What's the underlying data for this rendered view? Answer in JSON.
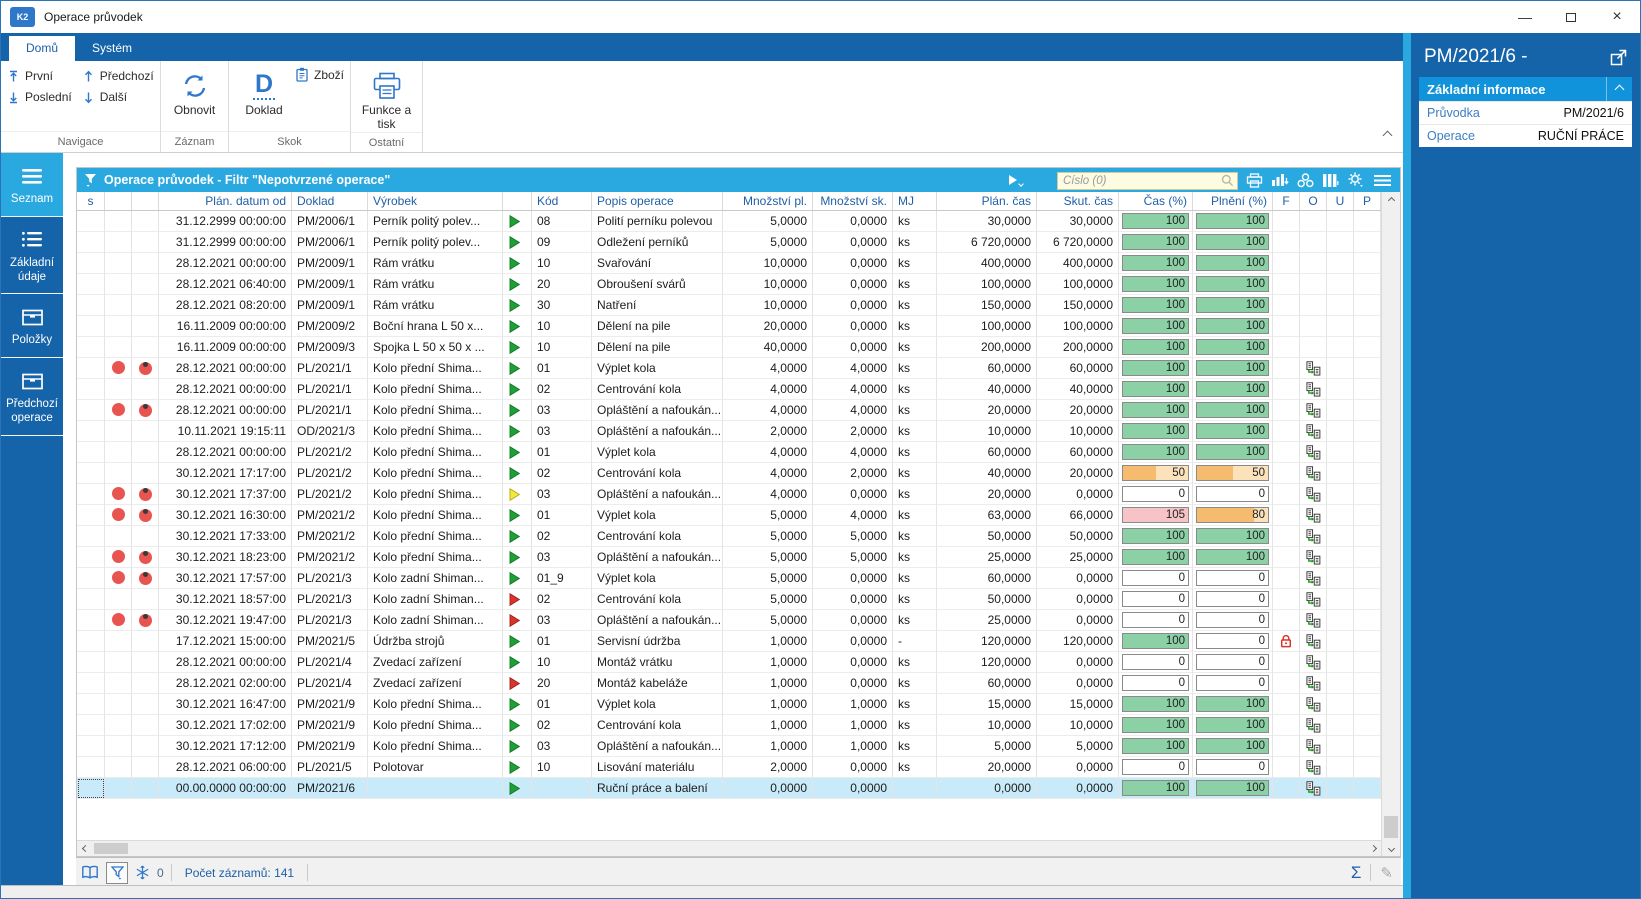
{
  "window": {
    "title": "Operace průvodek",
    "logo": "K2"
  },
  "ribbon": {
    "tabs": [
      {
        "label": "Domů"
      },
      {
        "label": "Systém"
      }
    ],
    "nav": {
      "first": "První",
      "last": "Poslední",
      "prev": "Předchozí",
      "next": "Další"
    },
    "refresh": "Obnovit",
    "doklad": "Doklad",
    "zbozi": "Zboží",
    "funkce": "Funkce a tisk",
    "group_labels": [
      "Navigace",
      "Záznam",
      "Skok",
      "Ostatní"
    ]
  },
  "sidebar": {
    "items": [
      {
        "label": "Seznam"
      },
      {
        "label": "Základní údaje"
      },
      {
        "label": "Položky"
      },
      {
        "label": "Předchozí operace"
      }
    ]
  },
  "filterbar": {
    "title": "Operace průvodek - Filtr \"Nepotvrzené operace\"",
    "search_placeholder": "Číslo (0)"
  },
  "table": {
    "columns": [
      "s",
      "",
      "",
      "Plán. datum od",
      "Doklad",
      "Výrobek",
      "",
      "Kód",
      "Popis operace",
      "Množství pl.",
      "Množství sk.",
      "MJ",
      "Plán. čas",
      "Skut. čas",
      "Čas (%)",
      "Plnění (%)",
      "F",
      "O",
      "U",
      "P"
    ],
    "rows": [
      {
        "dots": 0,
        "datum": "31.12.2999 00:00:00",
        "doklad": "PM/2006/1",
        "vyrobek": "Perník politý polev...",
        "arrow": "green",
        "kod": "08",
        "popis": "Polití perníku polevou",
        "mpl": "5,0000",
        "msk": "0,0000",
        "mj": "ks",
        "pc": "30,0000",
        "sc": "30,0000",
        "cas": 100,
        "pln": 100,
        "lock": 0,
        "olink": 0,
        "sel": 0
      },
      {
        "dots": 0,
        "datum": "31.12.2999 00:00:00",
        "doklad": "PM/2006/1",
        "vyrobek": "Perník politý polev...",
        "arrow": "green",
        "kod": "09",
        "popis": "Odležení perníků",
        "mpl": "5,0000",
        "msk": "0,0000",
        "mj": "ks",
        "pc": "6 720,0000",
        "sc": "6 720,0000",
        "cas": 100,
        "pln": 100,
        "lock": 0,
        "olink": 0,
        "sel": 0
      },
      {
        "dots": 0,
        "datum": "28.12.2021 00:00:00",
        "doklad": "PM/2009/1",
        "vyrobek": "Rám vrátku",
        "arrow": "green",
        "kod": "10",
        "popis": "Svařování",
        "mpl": "10,0000",
        "msk": "0,0000",
        "mj": "ks",
        "pc": "400,0000",
        "sc": "400,0000",
        "cas": 100,
        "pln": 100,
        "lock": 0,
        "olink": 0,
        "sel": 0
      },
      {
        "dots": 0,
        "datum": "28.12.2021 06:40:00",
        "doklad": "PM/2009/1",
        "vyrobek": "Rám vrátku",
        "arrow": "green",
        "kod": "20",
        "popis": "Obroušení svárů",
        "mpl": "10,0000",
        "msk": "0,0000",
        "mj": "ks",
        "pc": "100,0000",
        "sc": "100,0000",
        "cas": 100,
        "pln": 100,
        "lock": 0,
        "olink": 0,
        "sel": 0
      },
      {
        "dots": 0,
        "datum": "28.12.2021 08:20:00",
        "doklad": "PM/2009/1",
        "vyrobek": "Rám vrátku",
        "arrow": "green",
        "kod": "30",
        "popis": "Natření",
        "mpl": "10,0000",
        "msk": "0,0000",
        "mj": "ks",
        "pc": "150,0000",
        "sc": "150,0000",
        "cas": 100,
        "pln": 100,
        "lock": 0,
        "olink": 0,
        "sel": 0
      },
      {
        "dots": 0,
        "datum": "16.11.2009 00:00:00",
        "doklad": "PM/2009/2",
        "vyrobek": "Boční hrana L 50 x...",
        "arrow": "green",
        "kod": "10",
        "popis": "Dělení na pile",
        "mpl": "20,0000",
        "msk": "0,0000",
        "mj": "ks",
        "pc": "100,0000",
        "sc": "100,0000",
        "cas": 100,
        "pln": 100,
        "lock": 0,
        "olink": 0,
        "sel": 0
      },
      {
        "dots": 0,
        "datum": "16.11.2009 00:00:00",
        "doklad": "PM/2009/3",
        "vyrobek": "Spojka L 50 x 50 x ...",
        "arrow": "green",
        "kod": "10",
        "popis": "Dělení na pile",
        "mpl": "40,0000",
        "msk": "0,0000",
        "mj": "ks",
        "pc": "200,0000",
        "sc": "200,0000",
        "cas": 100,
        "pln": 100,
        "lock": 0,
        "olink": 0,
        "sel": 0
      },
      {
        "dots": 1,
        "datum": "28.12.2021 00:00:00",
        "doklad": "PL/2021/1",
        "vyrobek": "Kolo přední Shima...",
        "arrow": "green",
        "kod": "01",
        "popis": "Výplet kola",
        "mpl": "4,0000",
        "msk": "4,0000",
        "mj": "ks",
        "pc": "60,0000",
        "sc": "60,0000",
        "cas": 100,
        "pln": 100,
        "lock": 0,
        "olink": 1,
        "sel": 0
      },
      {
        "dots": 0,
        "datum": "28.12.2021 00:00:00",
        "doklad": "PL/2021/1",
        "vyrobek": "Kolo přední Shima...",
        "arrow": "green",
        "kod": "02",
        "popis": "Centrování kola",
        "mpl": "4,0000",
        "msk": "4,0000",
        "mj": "ks",
        "pc": "40,0000",
        "sc": "40,0000",
        "cas": 100,
        "pln": 100,
        "lock": 0,
        "olink": 1,
        "sel": 0
      },
      {
        "dots": 1,
        "datum": "28.12.2021 00:00:00",
        "doklad": "PL/2021/1",
        "vyrobek": "Kolo přední Shima...",
        "arrow": "green",
        "kod": "03",
        "popis": "Opláštění a nafoukán...",
        "mpl": "4,0000",
        "msk": "4,0000",
        "mj": "ks",
        "pc": "20,0000",
        "sc": "20,0000",
        "cas": 100,
        "pln": 100,
        "lock": 0,
        "olink": 1,
        "sel": 0
      },
      {
        "dots": 0,
        "datum": "10.11.2021 19:15:11",
        "doklad": "OD/2021/3",
        "vyrobek": "Kolo přední Shima...",
        "arrow": "green",
        "kod": "03",
        "popis": "Opláštění a nafoukán...",
        "mpl": "2,0000",
        "msk": "2,0000",
        "mj": "ks",
        "pc": "10,0000",
        "sc": "10,0000",
        "cas": 100,
        "pln": 100,
        "lock": 0,
        "olink": 1,
        "sel": 0
      },
      {
        "dots": 0,
        "datum": "28.12.2021 00:00:00",
        "doklad": "PL/2021/2",
        "vyrobek": "Kolo přední Shima...",
        "arrow": "green",
        "kod": "01",
        "popis": "Výplet kola",
        "mpl": "4,0000",
        "msk": "4,0000",
        "mj": "ks",
        "pc": "60,0000",
        "sc": "60,0000",
        "cas": 100,
        "pln": 100,
        "lock": 0,
        "olink": 1,
        "sel": 0
      },
      {
        "dots": 0,
        "datum": "30.12.2021 17:17:00",
        "doklad": "PL/2021/2",
        "vyrobek": "Kolo přední Shima...",
        "arrow": "green",
        "kod": "02",
        "popis": "Centrování kola",
        "mpl": "4,0000",
        "msk": "2,0000",
        "mj": "ks",
        "pc": "40,0000",
        "sc": "20,0000",
        "cas": 50,
        "pln": 50,
        "lock": 0,
        "olink": 1,
        "sel": 0
      },
      {
        "dots": 1,
        "datum": "30.12.2021 17:37:00",
        "doklad": "PL/2021/2",
        "vyrobek": "Kolo přední Shima...",
        "arrow": "yellow",
        "kod": "03",
        "popis": "Opláštění a nafoukán...",
        "mpl": "4,0000",
        "msk": "0,0000",
        "mj": "ks",
        "pc": "20,0000",
        "sc": "0,0000",
        "cas": 0,
        "pln": 0,
        "lock": 0,
        "olink": 1,
        "sel": 0
      },
      {
        "dots": 1,
        "datum": "30.12.2021 16:30:00",
        "doklad": "PM/2021/2",
        "vyrobek": "Kolo přední Shima...",
        "arrow": "green",
        "kod": "01",
        "popis": "Výplet kola",
        "mpl": "5,0000",
        "msk": "4,0000",
        "mj": "ks",
        "pc": "63,0000",
        "sc": "66,0000",
        "cas": 105,
        "pln": 80,
        "lock": 0,
        "olink": 1,
        "sel": 0
      },
      {
        "dots": 0,
        "datum": "30.12.2021 17:33:00",
        "doklad": "PM/2021/2",
        "vyrobek": "Kolo přední Shima...",
        "arrow": "green",
        "kod": "02",
        "popis": "Centrování kola",
        "mpl": "5,0000",
        "msk": "5,0000",
        "mj": "ks",
        "pc": "50,0000",
        "sc": "50,0000",
        "cas": 100,
        "pln": 100,
        "lock": 0,
        "olink": 1,
        "sel": 0
      },
      {
        "dots": 1,
        "datum": "30.12.2021 18:23:00",
        "doklad": "PM/2021/2",
        "vyrobek": "Kolo přední Shima...",
        "arrow": "green",
        "kod": "03",
        "popis": "Opláštění a nafoukán...",
        "mpl": "5,0000",
        "msk": "5,0000",
        "mj": "ks",
        "pc": "25,0000",
        "sc": "25,0000",
        "cas": 100,
        "pln": 100,
        "lock": 0,
        "olink": 1,
        "sel": 0
      },
      {
        "dots": 1,
        "datum": "30.12.2021 17:57:00",
        "doklad": "PL/2021/3",
        "vyrobek": "Kolo zadní Shiman...",
        "arrow": "green",
        "kod": "01_9",
        "popis": "Výplet kola",
        "mpl": "5,0000",
        "msk": "0,0000",
        "mj": "ks",
        "pc": "60,0000",
        "sc": "0,0000",
        "cas": 0,
        "pln": 0,
        "lock": 0,
        "olink": 1,
        "sel": 0
      },
      {
        "dots": 0,
        "datum": "30.12.2021 18:57:00",
        "doklad": "PL/2021/3",
        "vyrobek": "Kolo zadní Shiman...",
        "arrow": "red",
        "kod": "02",
        "popis": "Centrování kola",
        "mpl": "5,0000",
        "msk": "0,0000",
        "mj": "ks",
        "pc": "50,0000",
        "sc": "0,0000",
        "cas": 0,
        "pln": 0,
        "lock": 0,
        "olink": 1,
        "sel": 0
      },
      {
        "dots": 1,
        "datum": "30.12.2021 19:47:00",
        "doklad": "PL/2021/3",
        "vyrobek": "Kolo zadní Shiman...",
        "arrow": "red",
        "kod": "03",
        "popis": "Opláštění a nafoukán...",
        "mpl": "5,0000",
        "msk": "0,0000",
        "mj": "ks",
        "pc": "25,0000",
        "sc": "0,0000",
        "cas": 0,
        "pln": 0,
        "lock": 0,
        "olink": 1,
        "sel": 0
      },
      {
        "dots": 0,
        "datum": "17.12.2021 15:00:00",
        "doklad": "PM/2021/5",
        "vyrobek": "Údržba strojů",
        "arrow": "green",
        "kod": "01",
        "popis": "Servisní údržba",
        "mpl": "1,0000",
        "msk": "0,0000",
        "mj": "-",
        "pc": "120,0000",
        "sc": "120,0000",
        "cas": 100,
        "pln": 0,
        "lock": 1,
        "olink": 1,
        "sel": 0
      },
      {
        "dots": 0,
        "datum": "28.12.2021 00:00:00",
        "doklad": "PL/2021/4",
        "vyrobek": "Zvedací zařízení",
        "arrow": "green",
        "kod": "10",
        "popis": "Montáž vrátku",
        "mpl": "1,0000",
        "msk": "0,0000",
        "mj": "ks",
        "pc": "120,0000",
        "sc": "0,0000",
        "cas": 0,
        "pln": 0,
        "lock": 0,
        "olink": 1,
        "sel": 0
      },
      {
        "dots": 0,
        "datum": "28.12.2021 02:00:00",
        "doklad": "PL/2021/4",
        "vyrobek": "Zvedací zařízení",
        "arrow": "red",
        "kod": "20",
        "popis": "Montáž kabeláže",
        "mpl": "1,0000",
        "msk": "0,0000",
        "mj": "ks",
        "pc": "60,0000",
        "sc": "0,0000",
        "cas": 0,
        "pln": 0,
        "lock": 0,
        "olink": 1,
        "sel": 0
      },
      {
        "dots": 0,
        "datum": "30.12.2021 16:47:00",
        "doklad": "PM/2021/9",
        "vyrobek": "Kolo přední Shima...",
        "arrow": "green",
        "kod": "01",
        "popis": "Výplet kola",
        "mpl": "1,0000",
        "msk": "1,0000",
        "mj": "ks",
        "pc": "15,0000",
        "sc": "15,0000",
        "cas": 100,
        "pln": 100,
        "lock": 0,
        "olink": 1,
        "sel": 0
      },
      {
        "dots": 0,
        "datum": "30.12.2021 17:02:00",
        "doklad": "PM/2021/9",
        "vyrobek": "Kolo přední Shima...",
        "arrow": "green",
        "kod": "02",
        "popis": "Centrování kola",
        "mpl": "1,0000",
        "msk": "1,0000",
        "mj": "ks",
        "pc": "10,0000",
        "sc": "10,0000",
        "cas": 100,
        "pln": 100,
        "lock": 0,
        "olink": 1,
        "sel": 0
      },
      {
        "dots": 0,
        "datum": "30.12.2021 17:12:00",
        "doklad": "PM/2021/9",
        "vyrobek": "Kolo přední Shima...",
        "arrow": "green",
        "kod": "03",
        "popis": "Opláštění a nafoukán...",
        "mpl": "1,0000",
        "msk": "1,0000",
        "mj": "ks",
        "pc": "5,0000",
        "sc": "5,0000",
        "cas": 100,
        "pln": 100,
        "lock": 0,
        "olink": 1,
        "sel": 0
      },
      {
        "dots": 0,
        "datum": "28.12.2021 06:00:00",
        "doklad": "PL/2021/5",
        "vyrobek": "Polotovar",
        "arrow": "green",
        "kod": "10",
        "popis": "Lisování materiálu",
        "mpl": "2,0000",
        "msk": "0,0000",
        "mj": "ks",
        "pc": "20,0000",
        "sc": "0,0000",
        "cas": 0,
        "pln": 0,
        "lock": 0,
        "olink": 1,
        "sel": 0
      },
      {
        "dots": 0,
        "datum": "00.00.0000 00:00:00",
        "doklad": "PM/2021/6",
        "vyrobek": "",
        "arrow": "green",
        "kod": "",
        "popis": "Ruční práce a balení",
        "mpl": "0,0000",
        "msk": "0,0000",
        "mj": "",
        "pc": "0,0000",
        "sc": "0,0000",
        "cas": 100,
        "pln": 100,
        "lock": 0,
        "olink": 1,
        "sel": 1
      }
    ]
  },
  "statusbar": {
    "frozen_count": "0",
    "records": "Počet záznamů: 141"
  },
  "right_panel": {
    "title": "PM/2021/6 -",
    "section": "Základní informace",
    "fields": [
      {
        "label": "Průvodka",
        "value": "PM/2021/6"
      },
      {
        "label": "Operace",
        "value": "RUČNÍ PRÁCE"
      }
    ]
  },
  "colors": {
    "dark_blue": "#1563A8",
    "cyan": "#2AA9E0",
    "section_blue": "#1193DB",
    "green_cell": "#8CD1A6",
    "orange_cell": "#F5BC6F",
    "pink_cell": "#F6C3C7",
    "selection": "#C9EAF9",
    "red_dot": "#E85450"
  }
}
